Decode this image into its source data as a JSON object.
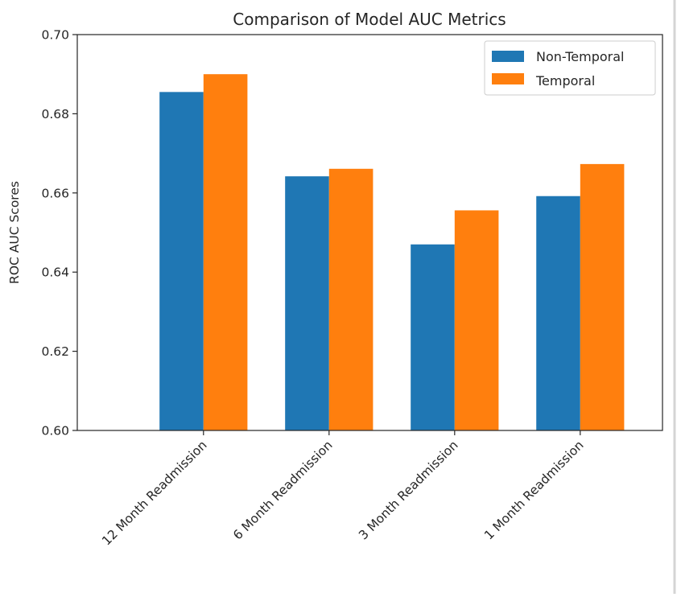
{
  "chart_data": {
    "type": "bar",
    "title": "Comparison of Model AUC Metrics",
    "xlabel": "",
    "ylabel": "ROC AUC Scores",
    "categories": [
      "12 Month Readmission",
      "6 Month Readmission",
      "3 Month Readmission",
      "1 Month Readmission"
    ],
    "series": [
      {
        "name": "Non-Temporal",
        "color": "#1f77b4",
        "values": [
          0.6855,
          0.6642,
          0.647,
          0.6592
        ]
      },
      {
        "name": "Temporal",
        "color": "#ff7f0e",
        "values": [
          0.69,
          0.6661,
          0.6556,
          0.6673
        ]
      }
    ],
    "ylim": [
      0.6,
      0.7
    ],
    "yticks": [
      0.6,
      0.62,
      0.64,
      0.66,
      0.68,
      0.7
    ],
    "ytick_labels": [
      "0.60",
      "0.62",
      "0.64",
      "0.66",
      "0.68",
      "0.70"
    ],
    "grid": false,
    "legend": {
      "position": "upper right"
    }
  }
}
